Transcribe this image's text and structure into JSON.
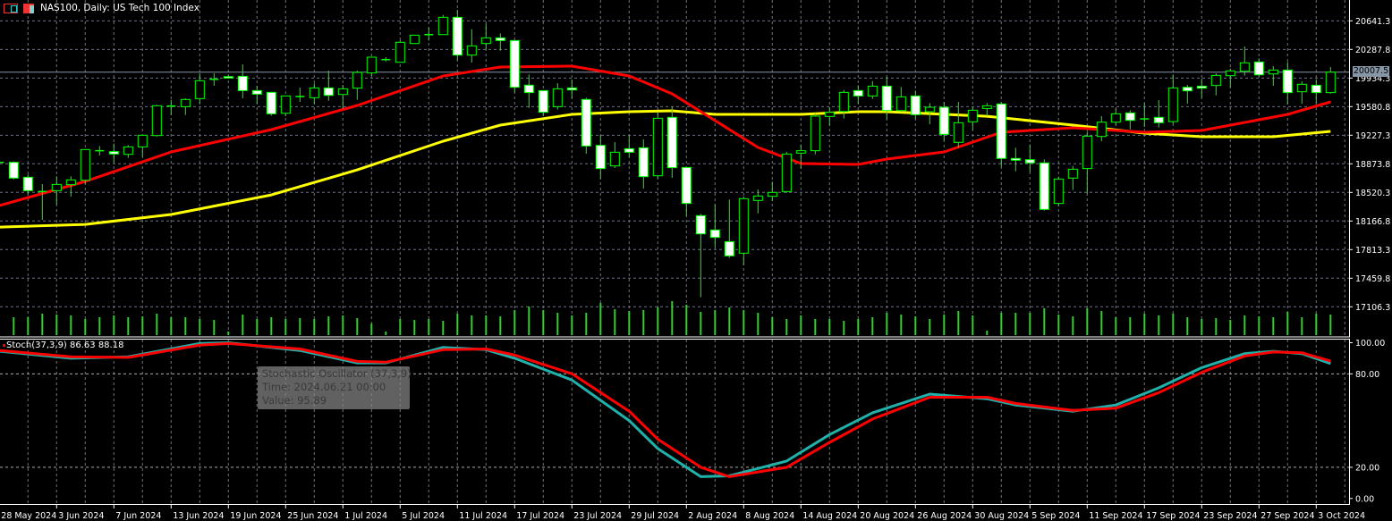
{
  "header": {
    "title": "NAS100, Daily:  US Tech 100 Index",
    "icons": [
      "chart-window-icon",
      "symbol-properties-icon"
    ]
  },
  "indicator": {
    "legend": "Stoch(37,3,9) 86.63 88.18"
  },
  "tooltip": {
    "line1": "Stochastic Oscillator (37,3,9)",
    "line2": "Time: 2024.06.21 00:00",
    "line3": "Value: 95.89"
  },
  "current_price": "20007.5",
  "colors": {
    "background": "#000000",
    "grid": "#6c7380",
    "candle_outline": "#00ff00",
    "bull_body": "#000000",
    "bear_body": "#ffffff",
    "volume": "#32cd32",
    "ma_fast": "#ff0000",
    "ma_slow": "#ffff00",
    "stoch_main": "#20b2aa",
    "stoch_signal": "#ff0000",
    "axis_text": "#ffffff"
  },
  "chart_data": {
    "type": "candlestick",
    "title": "NAS100, Daily:  US Tech 100 Index",
    "grid": true,
    "price_axis": {
      "ylim": [
        16745,
        20899
      ],
      "ticks": [
        "20641.3",
        "20287.8",
        "19934.3",
        "19580.8",
        "19227.3",
        "18873.8",
        "18520.3",
        "18166.8",
        "17813.3",
        "17459.8",
        "17106.3"
      ]
    },
    "x_axis_labels": [
      "28 May 2024",
      "3 Jun 2024",
      "7 Jun 2024",
      "13 Jun 2024",
      "19 Jun 2024",
      "25 Jun 2024",
      "1 Jul 2024",
      "5 Jul 2024",
      "11 Jul 2024",
      "17 Jul 2024",
      "23 Jul 2024",
      "29 Jul 2024",
      "2 Aug 2024",
      "8 Aug 2024",
      "14 Aug 2024",
      "20 Aug 2024",
      "26 Aug 2024",
      "30 Aug 2024",
      "5 Sep 2024",
      "11 Sep 2024",
      "17 Sep 2024",
      "23 Sep 2024",
      "27 Sep 2024",
      "3 Oct 2024"
    ],
    "candles_fields": [
      "date",
      "open",
      "high",
      "low",
      "close"
    ],
    "candles": [
      [
        "2024-05-28",
        18892,
        18900,
        18880,
        18892
      ],
      [
        "2024-05-29",
        18892,
        18903,
        18682,
        18697
      ],
      [
        "2024-05-30",
        18708,
        18741,
        18498,
        18542
      ],
      [
        "2024-05-31",
        18531,
        18623,
        18181,
        18531
      ],
      [
        "2024-06-03",
        18542,
        18719,
        18369,
        18619
      ],
      [
        "2024-06-04",
        18616,
        18719,
        18469,
        18675
      ],
      [
        "2024-06-05",
        18671,
        19050,
        18623,
        19050
      ],
      [
        "2024-06-06",
        19036,
        19094,
        18977,
        19036
      ],
      [
        "2024-06-07",
        19025,
        19124,
        18892,
        18995
      ],
      [
        "2024-06-10",
        18991,
        19105,
        18947,
        19083
      ],
      [
        "2024-06-11",
        19083,
        19227,
        18958,
        19227
      ],
      [
        "2024-06-12",
        19223,
        19603,
        19212,
        19592
      ],
      [
        "2024-06-13",
        19588,
        19665,
        19477,
        19588
      ],
      [
        "2024-06-14",
        19580,
        19683,
        19477,
        19669
      ],
      [
        "2024-06-17",
        19680,
        19993,
        19617,
        19901
      ],
      [
        "2024-06-18",
        19919,
        19993,
        19838,
        19919
      ],
      [
        "2024-06-19",
        19952,
        19978,
        19927,
        19934
      ],
      [
        "2024-06-20",
        19956,
        20103,
        19684,
        19779
      ],
      [
        "2024-06-21",
        19779,
        19838,
        19617,
        19735
      ],
      [
        "2024-06-24",
        19757,
        19765,
        19470,
        19492
      ],
      [
        "2024-06-25",
        19499,
        19713,
        19463,
        19713
      ],
      [
        "2024-06-26",
        19706,
        19816,
        19639,
        19706
      ],
      [
        "2024-06-27",
        19691,
        19868,
        19617,
        19812
      ],
      [
        "2024-06-28",
        19812,
        20026,
        19654,
        19720
      ],
      [
        "2024-07-01",
        19731,
        19849,
        19555,
        19801
      ],
      [
        "2024-07-02",
        19809,
        20026,
        19665,
        20004
      ],
      [
        "2024-07-03",
        19997,
        20199,
        19960,
        20192
      ],
      [
        "2024-07-04",
        20162,
        20192,
        20140,
        20162
      ],
      [
        "2024-07-05",
        20129,
        20402,
        20129,
        20376
      ],
      [
        "2024-07-08",
        20361,
        20464,
        20361,
        20464
      ],
      [
        "2024-07-09",
        20471,
        20560,
        20398,
        20471
      ],
      [
        "2024-07-10",
        20471,
        20714,
        20471,
        20685
      ],
      [
        "2024-07-11",
        20685,
        20777,
        20155,
        20218
      ],
      [
        "2024-07-12",
        20218,
        20538,
        20125,
        20332
      ],
      [
        "2024-07-15",
        20361,
        20604,
        20291,
        20431
      ],
      [
        "2024-07-16",
        20431,
        20486,
        20273,
        20398
      ],
      [
        "2024-07-17",
        20398,
        20398,
        19757,
        19820
      ],
      [
        "2024-07-18",
        19846,
        19978,
        19566,
        19754
      ],
      [
        "2024-07-19",
        19779,
        19779,
        19463,
        19511
      ],
      [
        "2024-07-22",
        19580,
        19871,
        19544,
        19801
      ],
      [
        "2024-07-23",
        19812,
        19915,
        19684,
        19787
      ],
      [
        "2024-07-24",
        19669,
        19691,
        18999,
        19094
      ],
      [
        "2024-07-25",
        19102,
        19227,
        18690,
        18815
      ],
      [
        "2024-07-26",
        18848,
        19142,
        18822,
        19017
      ],
      [
        "2024-07-29",
        19061,
        19227,
        18958,
        19017
      ],
      [
        "2024-07-30",
        19072,
        19175,
        18568,
        18715
      ],
      [
        "2024-07-31",
        18726,
        19514,
        18690,
        19437
      ],
      [
        "2024-08-01",
        19448,
        19580,
        18701,
        18826
      ],
      [
        "2024-08-02",
        18829,
        18829,
        18229,
        18384
      ],
      [
        "2024-08-05",
        18233,
        18255,
        17224,
        18008
      ],
      [
        "2024-08-06",
        18056,
        18373,
        17842,
        17964
      ],
      [
        "2024-08-07",
        17912,
        18432,
        17710,
        17736
      ],
      [
        "2024-08-08",
        17769,
        18468,
        17621,
        18443
      ],
      [
        "2024-08-09",
        18421,
        18557,
        18262,
        18476
      ],
      [
        "2024-08-12",
        18472,
        18652,
        18413,
        18520
      ],
      [
        "2024-08-13",
        18531,
        19021,
        18516,
        18995
      ],
      [
        "2024-08-14",
        19006,
        19113,
        18814,
        19036
      ],
      [
        "2024-08-15",
        19036,
        19499,
        18991,
        19463
      ],
      [
        "2024-08-16",
        19459,
        19573,
        19345,
        19510
      ],
      [
        "2024-08-19",
        19521,
        19787,
        19433,
        19757
      ],
      [
        "2024-08-20",
        19779,
        19845,
        19617,
        19713
      ],
      [
        "2024-08-21",
        19713,
        19897,
        19676,
        19834
      ],
      [
        "2024-08-22",
        19834,
        19949,
        19426,
        19532
      ],
      [
        "2024-08-23",
        19532,
        19823,
        19514,
        19702
      ],
      [
        "2024-08-26",
        19713,
        19779,
        19426,
        19481
      ],
      [
        "2024-08-27",
        19518,
        19625,
        19363,
        19573
      ],
      [
        "2024-08-28",
        19573,
        19639,
        19161,
        19238
      ],
      [
        "2024-08-29",
        19139,
        19639,
        19072,
        19382
      ],
      [
        "2024-08-30",
        19393,
        19573,
        19293,
        19536
      ],
      [
        "2024-09-02",
        19558,
        19625,
        19463,
        19591
      ],
      [
        "2024-09-03",
        19614,
        19636,
        18837,
        18940
      ],
      [
        "2024-09-04",
        18940,
        19072,
        18781,
        18918
      ],
      [
        "2024-09-05",
        18925,
        19113,
        18770,
        18885
      ],
      [
        "2024-09-06",
        18885,
        18929,
        18295,
        18310
      ],
      [
        "2024-09-09",
        18384,
        18715,
        18351,
        18686
      ],
      [
        "2024-09-10",
        18697,
        18848,
        18550,
        18807
      ],
      [
        "2024-09-11",
        18815,
        19271,
        18505,
        19216
      ],
      [
        "2024-09-12",
        19212,
        19463,
        19153,
        19389
      ],
      [
        "2024-09-13",
        19389,
        19558,
        19352,
        19492
      ],
      [
        "2024-09-16",
        19503,
        19536,
        19300,
        19411
      ],
      [
        "2024-09-17",
        19429,
        19625,
        19330,
        19429
      ],
      [
        "2024-09-18",
        19448,
        19661,
        19323,
        19382
      ],
      [
        "2024-09-19",
        19396,
        19978,
        19367,
        19812
      ],
      [
        "2024-09-20",
        19820,
        19849,
        19617,
        19776
      ],
      [
        "2024-09-23",
        19834,
        19927,
        19691,
        19809
      ],
      [
        "2024-09-24",
        19842,
        19993,
        19720,
        19967
      ],
      [
        "2024-09-25",
        19963,
        20052,
        19820,
        20022
      ],
      [
        "2024-09-26",
        20018,
        20324,
        19963,
        20122
      ],
      [
        "2024-09-27",
        20133,
        20177,
        19956,
        19974
      ],
      [
        "2024-09-30",
        19985,
        20081,
        19838,
        20033
      ],
      [
        "2024-10-01",
        20033,
        20133,
        19610,
        19754
      ],
      [
        "2024-10-02",
        19765,
        19893,
        19617,
        19857
      ],
      [
        "2024-10-03",
        19845,
        19919,
        19625,
        19754
      ],
      [
        "2024-10-04",
        19754,
        20070,
        19742,
        20007.5
      ]
    ],
    "volume": [
      20,
      20,
      20,
      24,
      23,
      22,
      18,
      20,
      22,
      20,
      21,
      24,
      20,
      20,
      18,
      17,
      4,
      23,
      18,
      20,
      18,
      19,
      18,
      21,
      22,
      19,
      13,
      4,
      18,
      17,
      18,
      16,
      24,
      22,
      22,
      21,
      28,
      32,
      28,
      25,
      22,
      25,
      36,
      29,
      27,
      28,
      31,
      38,
      34,
      26,
      28,
      31,
      28,
      25,
      20,
      18,
      22,
      18,
      18,
      16,
      18,
      20,
      25,
      23,
      21,
      18,
      23,
      27,
      22,
      5,
      25,
      25,
      25,
      30,
      23,
      21,
      30,
      27,
      20,
      20,
      24,
      22,
      24,
      20,
      18,
      19,
      17,
      22,
      21,
      20,
      26,
      20,
      24,
      23
    ],
    "ma_fast": [
      [
        "2024-05-28",
        18358
      ],
      [
        "2024-06-05",
        18656
      ],
      [
        "2024-06-13",
        19021
      ],
      [
        "2024-06-24",
        19297
      ],
      [
        "2024-07-02",
        19595
      ],
      [
        "2024-07-10",
        19960
      ],
      [
        "2024-07-16",
        20070
      ],
      [
        "2024-07-23",
        20081
      ],
      [
        "2024-07-29",
        19960
      ],
      [
        "2024-08-01",
        19739
      ],
      [
        "2024-08-06",
        19407
      ],
      [
        "2024-08-09",
        19076
      ],
      [
        "2024-08-14",
        18877
      ],
      [
        "2024-08-20",
        18866
      ],
      [
        "2024-08-22",
        18932
      ],
      [
        "2024-08-28",
        19021
      ],
      [
        "2024-09-03",
        19264
      ],
      [
        "2024-09-10",
        19319
      ],
      [
        "2024-09-17",
        19264
      ],
      [
        "2024-09-23",
        19286
      ],
      [
        "2024-09-26",
        19385
      ],
      [
        "2024-10-01",
        19485
      ],
      [
        "2024-10-04",
        19640
      ]
    ],
    "ma_slow": [
      [
        "2024-05-28",
        18092
      ],
      [
        "2024-06-05",
        18125
      ],
      [
        "2024-06-13",
        18247
      ],
      [
        "2024-06-24",
        18490
      ],
      [
        "2024-07-02",
        18799
      ],
      [
        "2024-07-10",
        19153
      ],
      [
        "2024-07-16",
        19352
      ],
      [
        "2024-07-23",
        19485
      ],
      [
        "2024-07-29",
        19518
      ],
      [
        "2024-08-01",
        19529
      ],
      [
        "2024-08-06",
        19485
      ],
      [
        "2024-08-14",
        19485
      ],
      [
        "2024-08-20",
        19518
      ],
      [
        "2024-08-22",
        19518
      ],
      [
        "2024-09-02",
        19462
      ],
      [
        "2024-09-10",
        19352
      ],
      [
        "2024-09-17",
        19253
      ],
      [
        "2024-09-23",
        19209
      ],
      [
        "2024-09-30",
        19209
      ],
      [
        "2024-10-04",
        19275
      ]
    ],
    "stochastic": {
      "params": "37,3,9",
      "ylim": [
        -3,
        102
      ],
      "ticks": [
        "100.00",
        "80.00",
        "20.00",
        "0.00"
      ],
      "levels": [
        80,
        20
      ],
      "fields": [
        "date",
        "main",
        "signal"
      ],
      "values": [
        [
          "2024-05-28",
          94.5,
          95
        ],
        [
          "2024-06-04",
          90,
          91
        ],
        [
          "2024-06-10",
          91,
          90.5
        ],
        [
          "2024-06-17",
          99.5,
          98.5
        ],
        [
          "2024-06-19",
          100,
          99.5
        ],
        [
          "2024-06-26",
          95,
          96
        ],
        [
          "2024-07-02",
          87,
          88
        ],
        [
          "2024-07-04",
          87,
          87.5
        ],
        [
          "2024-07-10",
          97,
          95.5
        ],
        [
          "2024-07-15",
          95.5,
          96
        ],
        [
          "2024-07-17",
          90,
          92
        ],
        [
          "2024-07-23",
          76,
          80
        ],
        [
          "2024-07-29",
          50,
          56
        ],
        [
          "2024-07-31",
          32,
          38
        ],
        [
          "2024-08-05",
          14,
          20
        ],
        [
          "2024-08-07",
          14.5,
          14
        ],
        [
          "2024-08-13",
          24,
          20
        ],
        [
          "2024-08-16",
          41,
          36
        ],
        [
          "2024-08-21",
          55,
          51
        ],
        [
          "2024-08-27",
          67,
          65
        ],
        [
          "2024-09-02",
          64,
          65
        ],
        [
          "2024-09-04",
          60,
          61
        ],
        [
          "2024-09-10",
          56,
          56.5
        ],
        [
          "2024-09-13",
          60,
          58
        ],
        [
          "2024-09-18",
          71,
          68
        ],
        [
          "2024-09-23",
          84,
          81
        ],
        [
          "2024-09-26",
          93,
          91.5
        ],
        [
          "2024-09-30",
          94.5,
          94
        ],
        [
          "2024-10-02",
          93,
          93.5
        ],
        [
          "2024-10-04",
          86.63,
          88.18
        ]
      ]
    }
  }
}
